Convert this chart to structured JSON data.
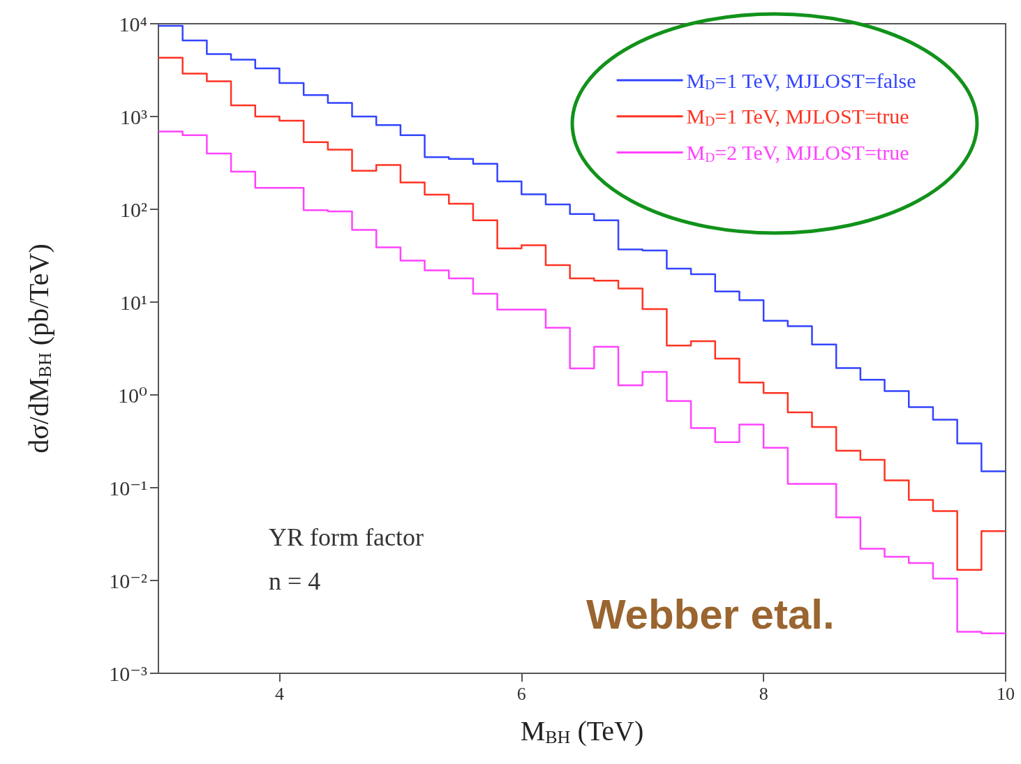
{
  "chart_data": {
    "type": "histogram",
    "xlabel": "M$_{BH}$ (TeV)",
    "ylabel": "dσ/dM$_{BH}$ (pb/TeV)",
    "bins": [
      3.0,
      3.2,
      3.4,
      3.6,
      3.8,
      4.0,
      4.2,
      4.4,
      4.6,
      4.8,
      5.0,
      5.2,
      5.4,
      5.6,
      5.8,
      6.0,
      6.2,
      6.4,
      6.6,
      6.8,
      7.0,
      7.2,
      7.4,
      7.6,
      7.8,
      8.0,
      8.2,
      8.4,
      8.6,
      8.8,
      9.0,
      9.2,
      9.4,
      9.6,
      9.8,
      10.0
    ],
    "series": [
      {
        "name": "M$_{D}$=1 TeV, MJLOST=false",
        "color": "#3344ff",
        "values": [
          9500,
          6600,
          4700,
          4100,
          3300,
          2300,
          1700,
          1400,
          1000,
          810,
          630,
          365,
          350,
          310,
          200,
          145,
          113,
          89,
          76,
          37,
          36,
          23,
          20,
          13,
          10.5,
          6.3,
          5.5,
          3.5,
          1.95,
          1.46,
          1.1,
          0.74,
          0.54,
          0.3,
          0.15
        ]
      },
      {
        "name": "M$_{D}$=1 TeV, MJLOST=true",
        "color": "#ff3322",
        "values": [
          4300,
          2900,
          2400,
          1320,
          1000,
          900,
          530,
          440,
          260,
          300,
          195,
          144,
          115,
          76,
          38,
          41,
          25,
          18,
          17,
          14,
          8.4,
          3.4,
          3.8,
          2.46,
          1.36,
          1.05,
          0.65,
          0.45,
          0.25,
          0.2,
          0.12,
          0.074,
          0.056,
          0.013,
          0.034
        ]
      },
      {
        "name": "M$_{D}$=2 TeV, MJLOST=true",
        "color": "#ff44ff",
        "values": [
          690,
          630,
          400,
          255,
          170,
          170,
          98,
          95,
          60,
          39,
          28,
          22,
          18,
          12.3,
          8.3,
          8.3,
          5.3,
          1.93,
          3.3,
          1.27,
          1.77,
          0.86,
          0.44,
          0.31,
          0.48,
          0.27,
          0.11,
          0.11,
          0.048,
          0.022,
          0.018,
          0.0154,
          0.0105,
          0.0028,
          0.0027
        ]
      }
    ],
    "xlim": [
      3,
      10
    ],
    "xticks": [
      4,
      6,
      8,
      10
    ],
    "ylim": [
      0.001,
      10000
    ],
    "log": true,
    "yticks": [
      {
        "value": 0.001,
        "label": "10⁻³"
      },
      {
        "value": 0.01,
        "label": "10⁻²"
      },
      {
        "value": 0.1,
        "label": "10⁻¹"
      },
      {
        "value": 1,
        "label": "10⁰"
      },
      {
        "value": 10,
        "label": "10¹"
      },
      {
        "value": 100,
        "label": "10²"
      },
      {
        "value": 1000,
        "label": "10³"
      },
      {
        "value": 10000,
        "label": "10⁴"
      }
    ],
    "grid": false,
    "legend": "top right",
    "line_style": "solid",
    "marker": "none",
    "annotations": [
      "YR form factor",
      "n = 4",
      "Webber etal."
    ]
  }
}
